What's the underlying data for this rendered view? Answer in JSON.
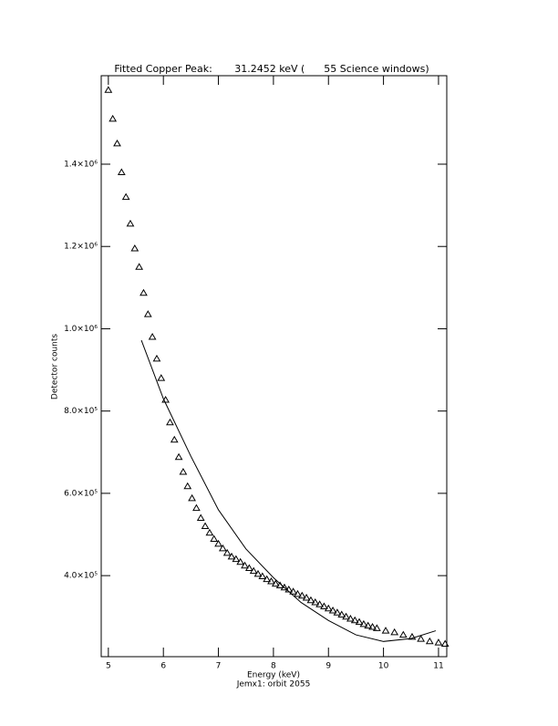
{
  "chart_data": {
    "type": "scatter",
    "title": "Fitted Copper Peak:       31.2452 keV (      55 Science windows)",
    "x_label": "Energy (keV)",
    "subtitle": "Jemx1: orbit 2055",
    "y_label": "Detector counts",
    "xlim": [
      4.87,
      11.15
    ],
    "ylim": [
      203000,
      1615000
    ],
    "xticks": [
      5,
      6,
      7,
      8,
      9,
      10,
      11
    ],
    "yticks": [
      {
        "value": 400000,
        "label": "4.0×10⁵"
      },
      {
        "value": 600000,
        "label": "6.0×10⁵"
      },
      {
        "value": 800000,
        "label": "8.0×10⁵"
      },
      {
        "value": 1000000,
        "label": "1.0×10⁶"
      },
      {
        "value": 1200000,
        "label": "1.2×10⁶"
      },
      {
        "value": 1400000,
        "label": "1.4×10⁶"
      }
    ],
    "series": [
      {
        "color": "#000000",
        "marker": "triangle",
        "x": [
          5.0,
          5.08,
          5.16,
          5.24,
          5.32,
          5.4,
          5.48,
          5.56,
          5.64,
          5.72,
          5.8,
          5.88,
          5.96,
          6.04,
          6.12,
          6.2,
          6.28,
          6.36,
          6.44,
          6.52,
          6.6,
          6.68,
          6.76,
          6.84,
          6.92,
          7.0,
          7.08,
          7.16,
          7.24,
          7.32,
          7.4,
          7.48,
          7.56,
          7.64,
          7.72,
          7.8,
          7.88,
          7.96,
          8.04,
          8.12,
          8.2,
          8.28,
          8.36,
          8.44,
          8.52,
          8.6,
          8.68,
          8.76,
          8.84,
          8.92,
          9.0,
          9.08,
          9.16,
          9.24,
          9.32,
          9.4,
          9.48,
          9.56,
          9.64,
          9.72,
          9.8,
          9.88,
          10.04,
          10.2,
          10.36,
          10.52,
          10.68,
          10.84,
          11.0,
          11.12
        ],
        "values": [
          1580000,
          1510000,
          1450000,
          1380000,
          1320000,
          1255000,
          1195000,
          1150000,
          1087000,
          1035000,
          980000,
          927000,
          880000,
          827000,
          772000,
          730000,
          688000,
          652000,
          617000,
          588000,
          564000,
          540000,
          520000,
          504000,
          489000,
          477000,
          466000,
          455000,
          446000,
          440000,
          433000,
          424000,
          418000,
          411000,
          404000,
          398000,
          391000,
          386000,
          380000,
          376000,
          371000,
          366000,
          361000,
          355000,
          351000,
          346000,
          340000,
          335000,
          330000,
          325000,
          320000,
          315000,
          310000,
          305000,
          300000,
          295000,
          291000,
          287000,
          282000,
          278000,
          275000,
          272000,
          266000,
          262000,
          256000,
          251000,
          246000,
          240000,
          237000,
          234000
        ]
      },
      {
        "color": "#000000",
        "marker": "line",
        "x": [
          5.6,
          6.0,
          6.5,
          7.0,
          7.5,
          8.0,
          8.5,
          9.0,
          9.5,
          10.0,
          10.5,
          10.95
        ],
        "values": [
          972000,
          830000,
          690000,
          560000,
          465000,
          395000,
          335000,
          291000,
          256000,
          240000,
          247000,
          266000
        ]
      }
    ]
  }
}
